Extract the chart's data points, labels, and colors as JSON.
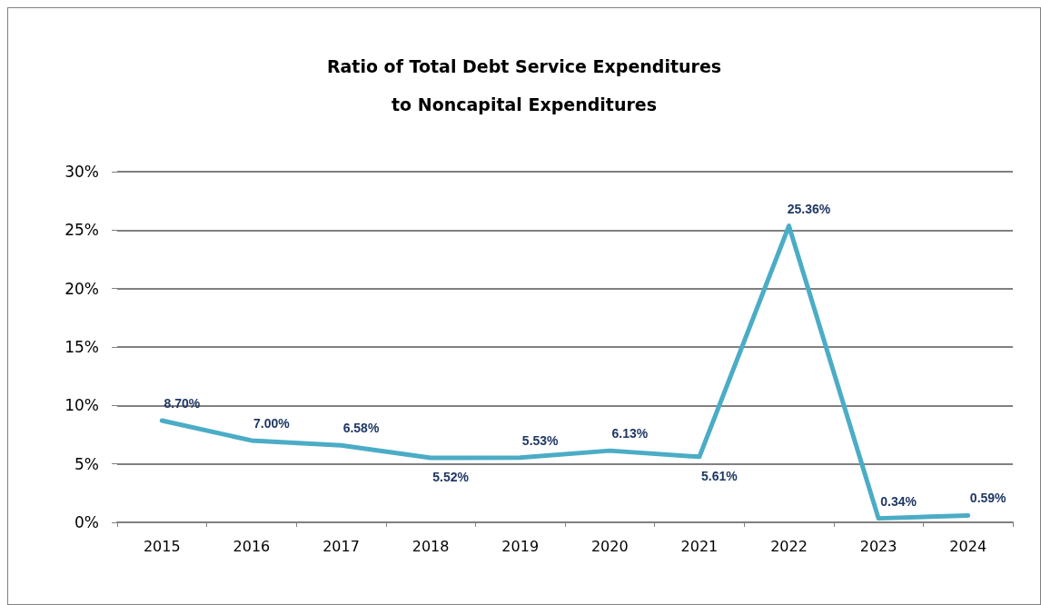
{
  "chart_data": {
    "type": "line",
    "title": "Ratio of Total Debt Service Expenditures\nto Noncapital Expenditures",
    "categories": [
      "2015",
      "2016",
      "2017",
      "2018",
      "2019",
      "2020",
      "2021",
      "2022",
      "2023",
      "2024"
    ],
    "series": [
      {
        "color": "#4bacc6",
        "values": [
          8.7,
          7.0,
          6.58,
          5.52,
          5.53,
          6.13,
          5.61,
          25.36,
          0.34,
          0.59
        ],
        "value_labels": [
          "8.70%",
          "7.00%",
          "6.58%",
          "5.52%",
          "5.53%",
          "6.13%",
          "5.61%",
          "25.36%",
          "0.34%",
          "0.59%"
        ]
      }
    ],
    "ylim": [
      0,
      30
    ],
    "yticks": [
      {
        "value": 0,
        "label": "0%"
      },
      {
        "value": 5,
        "label": "5%"
      },
      {
        "value": 10,
        "label": "10%"
      },
      {
        "value": 15,
        "label": "15%"
      },
      {
        "value": 20,
        "label": "20%"
      },
      {
        "value": 25,
        "label": "25%"
      },
      {
        "value": 30,
        "label": "30%"
      }
    ],
    "grid": "y",
    "marker": "none",
    "line_style": "solid"
  }
}
